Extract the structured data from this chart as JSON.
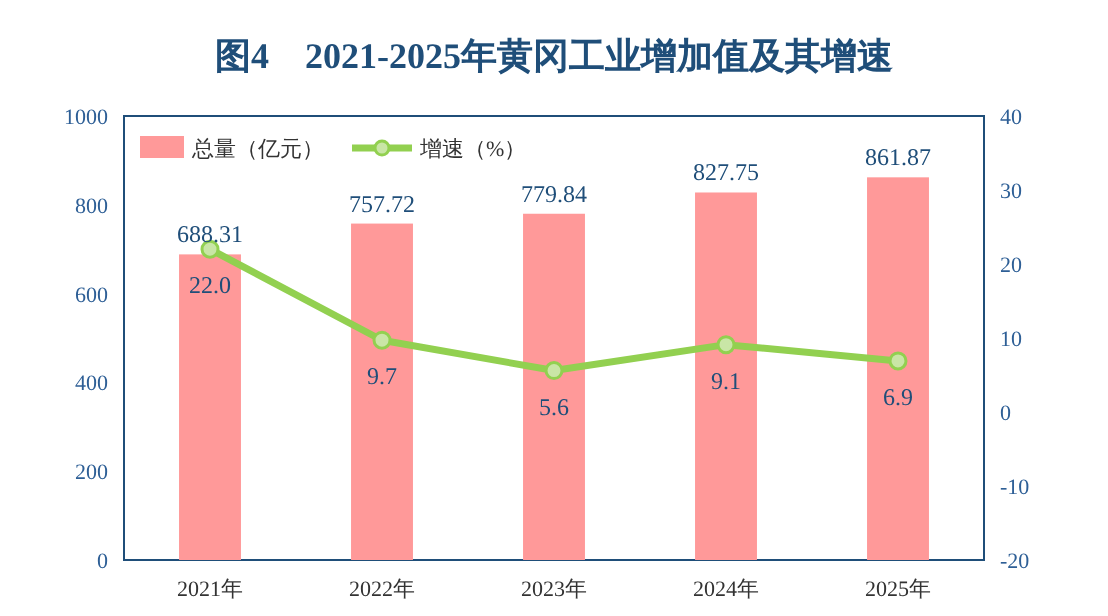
{
  "chart_data": {
    "type": "bar",
    "title": "图4　2021-2025年黄冈工业增加值及其增速",
    "categories": [
      "2021年",
      "2022年",
      "2023年",
      "2024年",
      "2025年"
    ],
    "series": [
      {
        "name": "总量（亿元）",
        "color": "#ff9999",
        "values": [
          688.31,
          757.72,
          779.84,
          827.75,
          861.87
        ]
      },
      {
        "name": "增速（%）",
        "type": "line",
        "axis": "y2",
        "color": "#92d050",
        "marker": "circle",
        "values": [
          22.0,
          9.7,
          5.6,
          9.1,
          6.9
        ],
        "value_labels": [
          "22.0",
          "9.7",
          "5.6",
          "9.1",
          "6.9"
        ]
      }
    ],
    "ylim": [
      0,
      1000
    ],
    "yticks": [
      0,
      200,
      400,
      600,
      800,
      1000
    ],
    "y2lim": [
      -20,
      40
    ],
    "y2ticks": [
      -20,
      -10,
      0,
      10,
      20,
      30,
      40
    ],
    "data_labels": true,
    "legend": "top left",
    "grid": false
  }
}
